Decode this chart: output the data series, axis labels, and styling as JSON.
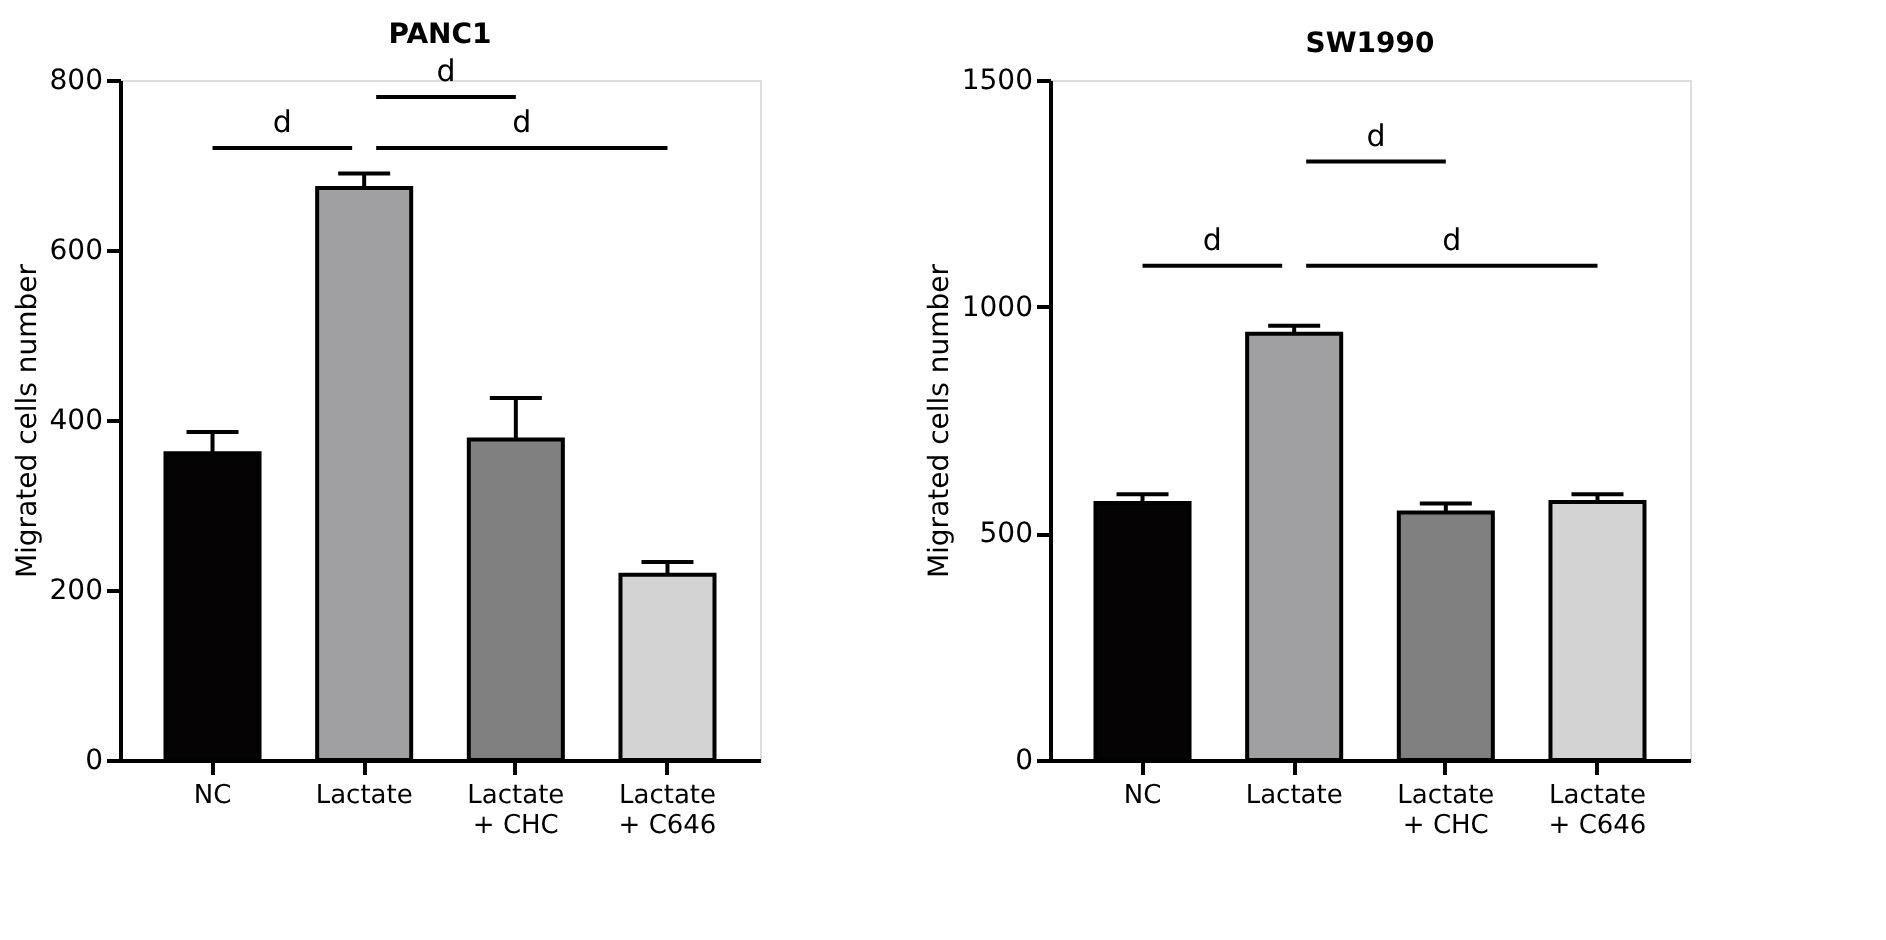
{
  "chart_data": [
    {
      "type": "bar",
      "title": "PANC1",
      "ylabel": "Migrated cells number",
      "categories": [
        "NC",
        "Lactate",
        "Lactate\n+ CHC",
        "Lactate\n+ C646"
      ],
      "values": [
        361,
        673,
        377,
        218
      ],
      "errors": [
        25,
        17,
        49,
        15
      ],
      "colors": [
        "#050303",
        "#a0a0a2",
        "#808080",
        "#d3d3d3"
      ],
      "ylim": [
        0,
        800
      ],
      "yticks": [
        0,
        200,
        400,
        600,
        800
      ],
      "grid": false,
      "annotations": [
        "d",
        "d",
        "d"
      ]
    },
    {
      "type": "bar",
      "title": "SW1990",
      "ylabel": "Migrated cells number",
      "categories": [
        "NC",
        "Lactate",
        "Lactate\n+ CHC",
        "Lactate\n+ C646"
      ],
      "values": [
        567,
        940,
        546,
        569
      ],
      "errors": [
        19,
        18,
        20,
        17
      ],
      "colors": [
        "#050303",
        "#a0a0a2",
        "#808080",
        "#d3d3d3"
      ],
      "ylim": [
        0,
        1500
      ],
      "yticks": [
        0,
        500,
        1000,
        1500
      ],
      "grid": false,
      "annotations": [
        "d",
        "d",
        "d"
      ]
    }
  ]
}
